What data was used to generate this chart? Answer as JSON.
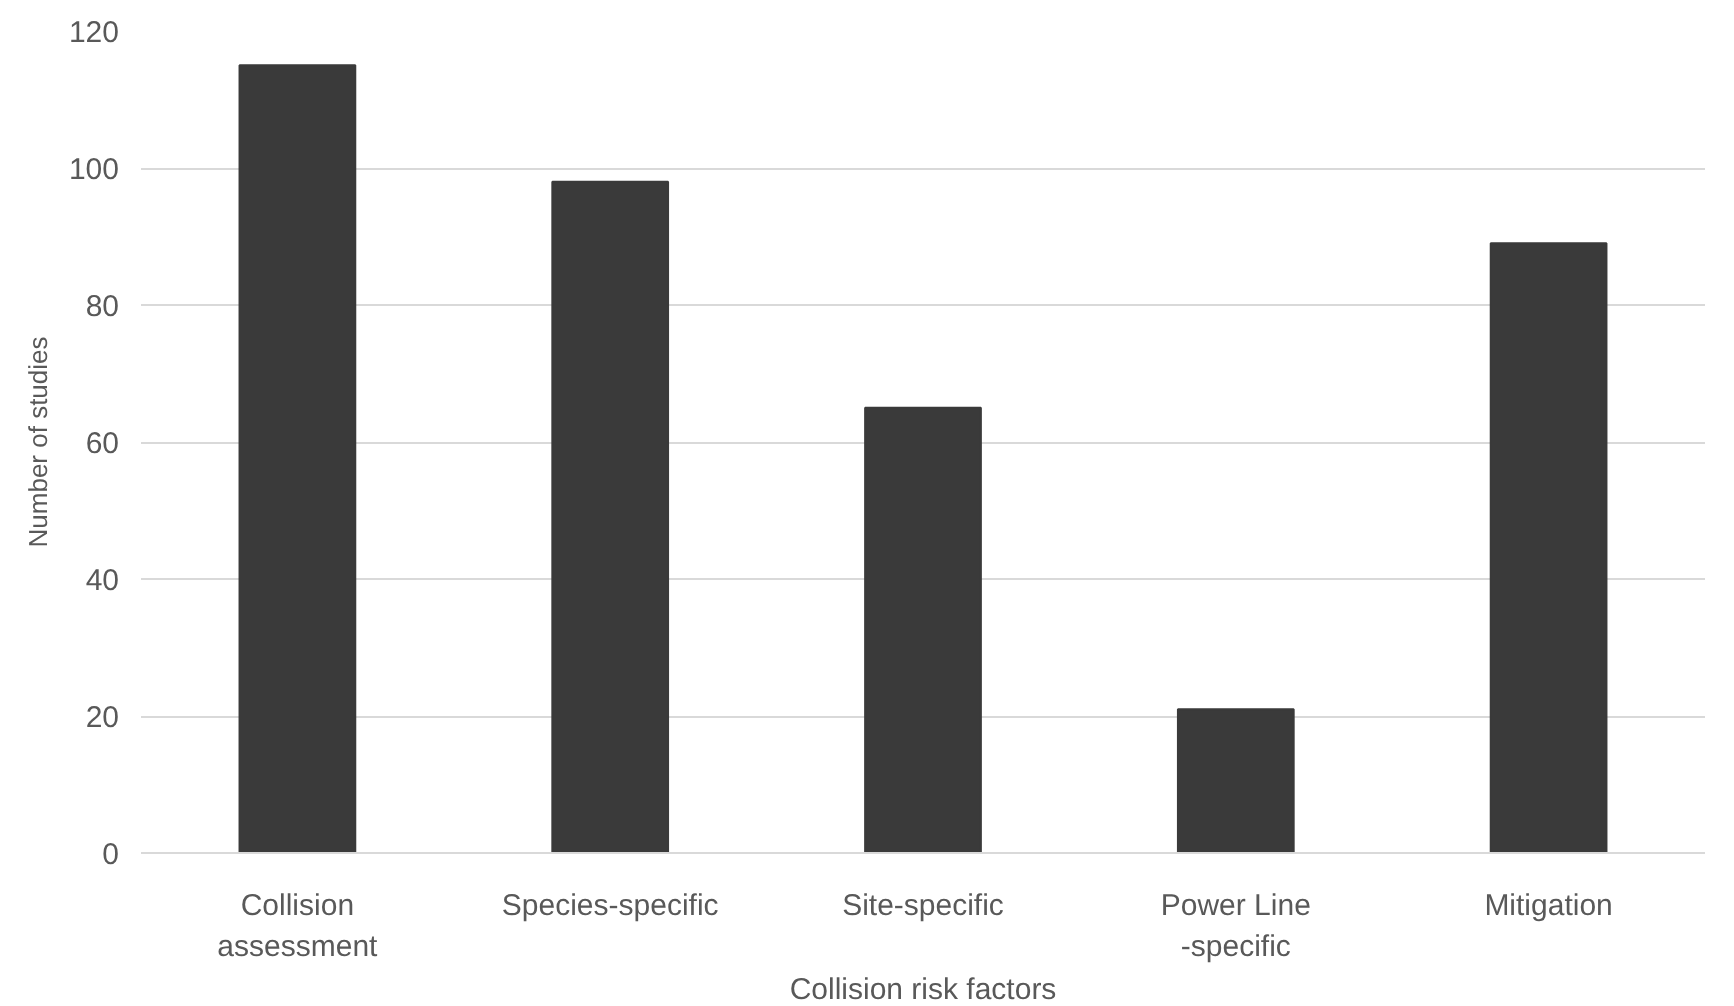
{
  "chart_data": {
    "type": "bar",
    "ylabel": "Number of studies",
    "categories": [
      "Collision\nassessment",
      "Species-specific",
      "Site-specific",
      "Power Line\n-specific",
      "Mitigation"
    ],
    "values": [
      115,
      98,
      65,
      21,
      89
    ],
    "color": "#3a3a3a",
    "ylim": [
      0,
      120
    ],
    "yticks": [
      0,
      20,
      40,
      60,
      80,
      100,
      120
    ],
    "grid": "y",
    "annotations": [
      {
        "text": "Collision risk factors"
      }
    ]
  }
}
